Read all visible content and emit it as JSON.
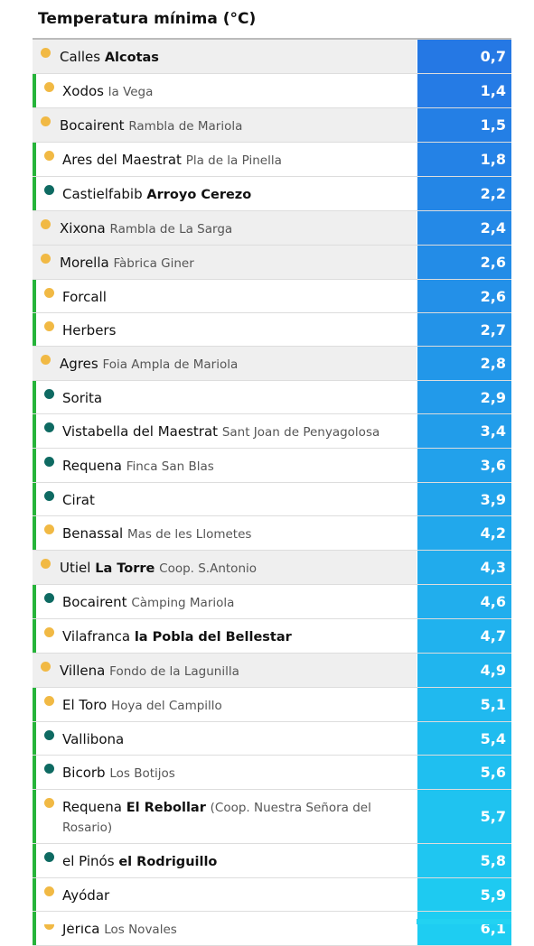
{
  "table": {
    "title": "Temperatura mínima (°C)",
    "rows": [
      {
        "name": "Calles",
        "bold": "Alcotas",
        "value": "0,7",
        "dot": "#f1b944",
        "bar": false
      },
      {
        "name": "Xodos",
        "place": "la Vega",
        "value": "1,4",
        "dot": "#f1b944",
        "bar": true
      },
      {
        "name": "Bocairent",
        "place": "Rambla de Mariola",
        "value": "1,5",
        "dot": "#f1b944",
        "bar": false
      },
      {
        "name": "Ares del Maestrat",
        "place": "Pla de la Pinella",
        "value": "1,8",
        "dot": "#f1b944",
        "bar": true
      },
      {
        "name": "Castielfabib",
        "bold": "Arroyo Cerezo",
        "value": "2,2",
        "dot": "#0e6a62",
        "bar": true
      },
      {
        "name": "Xixona",
        "place": "Rambla de La Sarga",
        "value": "2,4",
        "dot": "#f1b944",
        "bar": false
      },
      {
        "name": "Morella",
        "place": "Fàbrica Giner",
        "value": "2,6",
        "dot": "#f1b944",
        "bar": false
      },
      {
        "name": "Forcall",
        "value": "2,6",
        "dot": "#f1b944",
        "bar": true
      },
      {
        "name": "Herbers",
        "value": "2,7",
        "dot": "#f1b944",
        "bar": true
      },
      {
        "name": "Agres",
        "place": "Foia Ampla de Mariola",
        "value": "2,8",
        "dot": "#f1b944",
        "bar": false
      },
      {
        "name": "Sorita",
        "value": "2,9",
        "dot": "#0e6a62",
        "bar": true
      },
      {
        "name": "Vistabella del Maestrat",
        "place": "Sant Joan de Penyagolosa",
        "value": "3,4",
        "dot": "#0e6a62",
        "bar": true
      },
      {
        "name": "Requena",
        "place": "Finca San Blas",
        "value": "3,6",
        "dot": "#0e6a62",
        "bar": true
      },
      {
        "name": "Cirat",
        "value": "3,9",
        "dot": "#0e6a62",
        "bar": true
      },
      {
        "name": "Benassal",
        "place": "Mas de les Llometes",
        "value": "4,2",
        "dot": "#f1b944",
        "bar": true
      },
      {
        "name": "Utiel",
        "bold": "La Torre",
        "place": "Coop. S.Antonio",
        "value": "4,3",
        "dot": "#f1b944",
        "bar": false
      },
      {
        "name": "Bocairent",
        "place": "Càmping Mariola",
        "value": "4,6",
        "dot": "#0e6a62",
        "bar": true
      },
      {
        "name": "Vilafranca",
        "bold": "la Pobla del Bellestar",
        "value": "4,7",
        "dot": "#f1b944",
        "bar": true
      },
      {
        "name": "Villena",
        "place": "Fondo de la Lagunilla",
        "value": "4,9",
        "dot": "#f1b944",
        "bar": false
      },
      {
        "name": "El Toro",
        "place": "Hoya del Campillo",
        "value": "5,1",
        "dot": "#f1b944",
        "bar": true
      },
      {
        "name": "Vallibona",
        "value": "5,4",
        "dot": "#0e6a62",
        "bar": true
      },
      {
        "name": "Bicorb",
        "place": "Los Botijos",
        "value": "5,6",
        "dot": "#0e6a62",
        "bar": true
      },
      {
        "name": "Requena",
        "bold": "El Rebollar",
        "place": "(Coop. Nuestra Señora del Rosario)",
        "value": "5,7",
        "dot": "#f1b944",
        "bar": true
      },
      {
        "name": "el Pinós",
        "bold": "el Rodriguillo",
        "value": "5,8",
        "dot": "#0e6a62",
        "bar": true
      },
      {
        "name": "Ayódar",
        "value": "5,9",
        "dot": "#f1b944",
        "bar": true
      },
      {
        "name": "Jérica",
        "place": "Los Novales",
        "value": "6,1",
        "dot": "#f1b944",
        "bar": true
      }
    ]
  }
}
